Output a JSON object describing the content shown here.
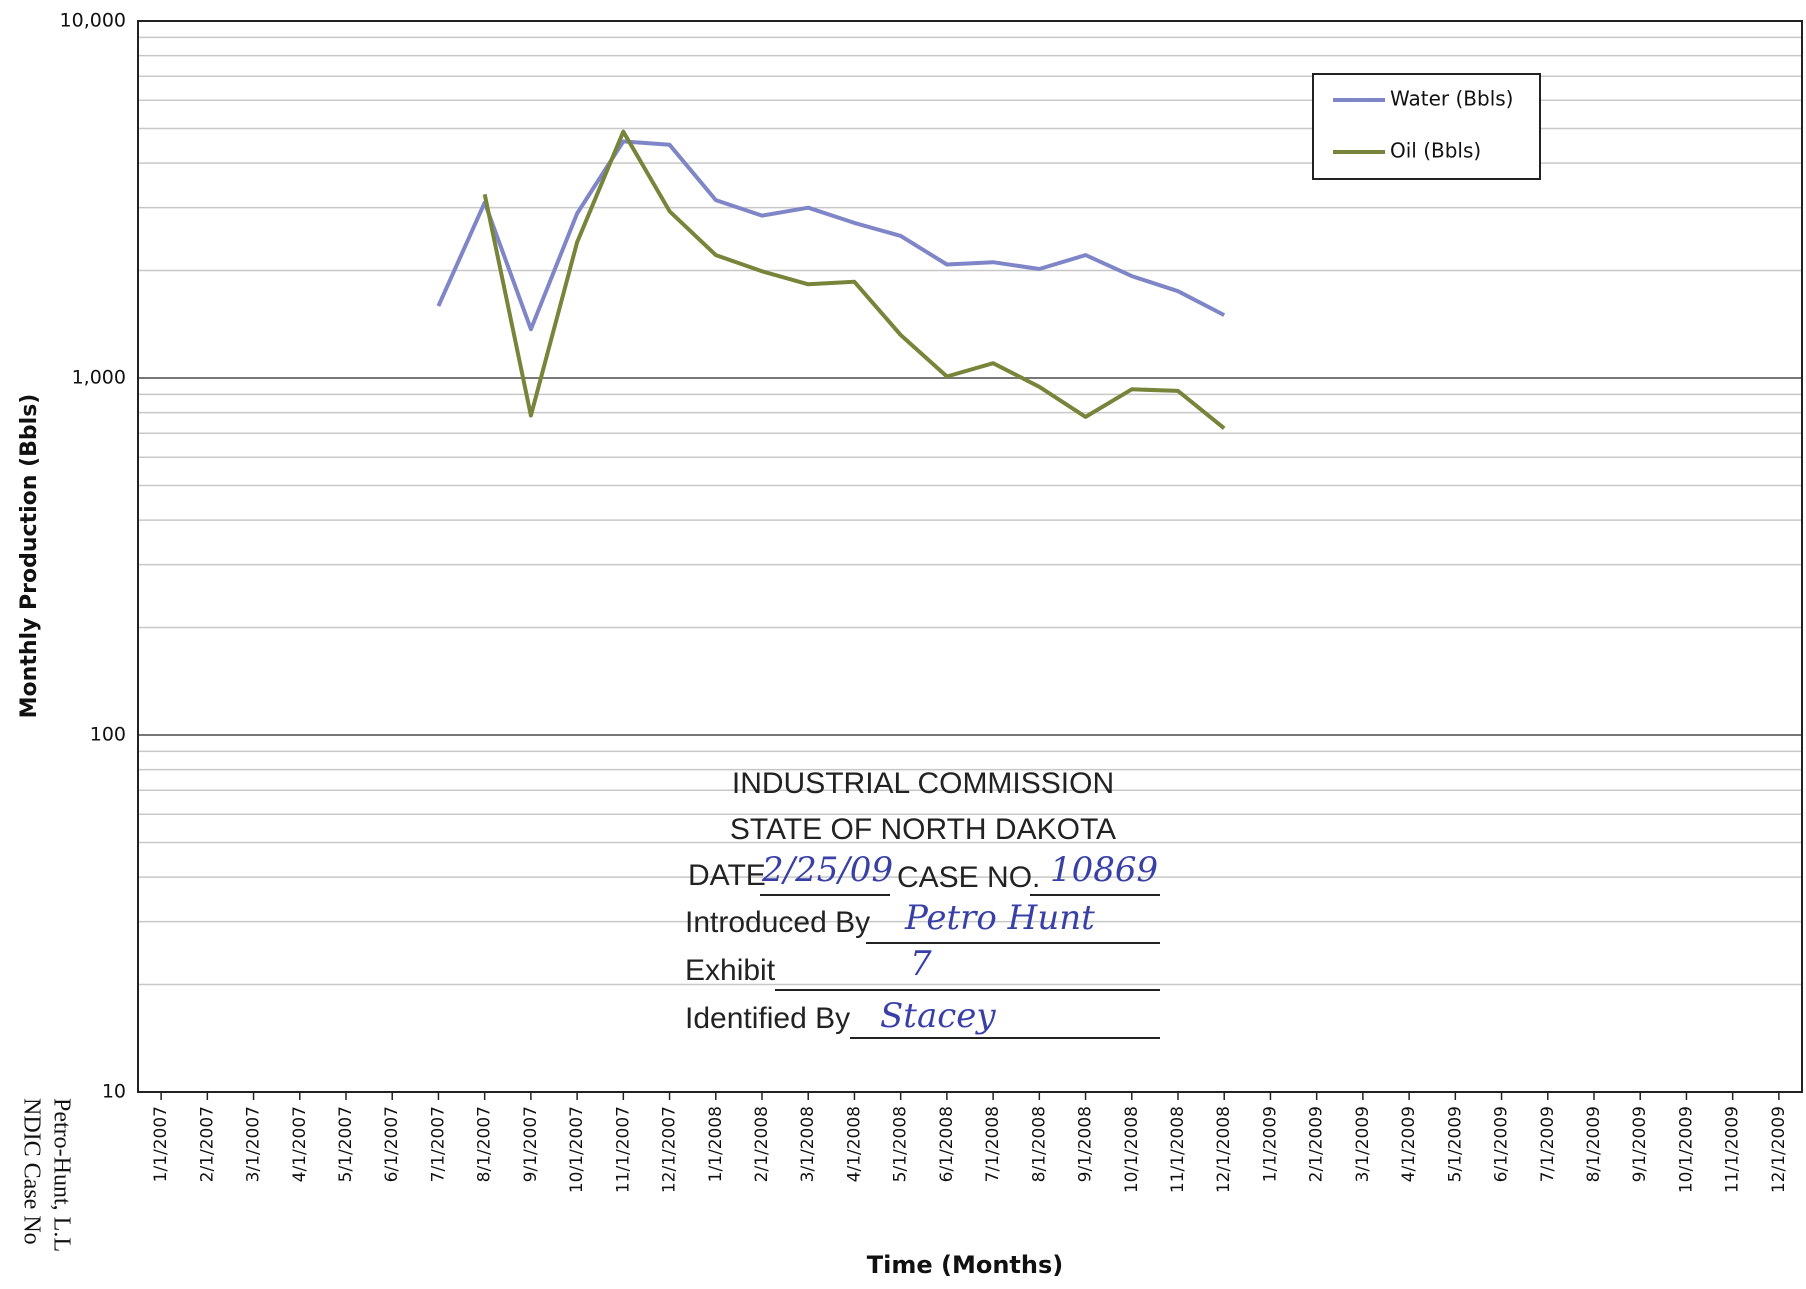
{
  "chart_data": {
    "type": "line",
    "ylabel": "Monthly Production (Bbls)",
    "xlabel": "Time (Months)",
    "categories": [
      "1/1/2007",
      "2/1/2007",
      "3/1/2007",
      "4/1/2007",
      "5/1/2007",
      "6/1/2007",
      "7/1/2007",
      "8/1/2007",
      "9/1/2007",
      "10/1/2007",
      "11/1/2007",
      "12/1/2007",
      "1/1/2008",
      "2/1/2008",
      "3/1/2008",
      "4/1/2008",
      "5/1/2008",
      "6/1/2008",
      "7/1/2008",
      "8/1/2008",
      "9/1/2008",
      "10/1/2008",
      "11/1/2008",
      "12/1/2008",
      "1/1/2009",
      "2/1/2009",
      "3/1/2009",
      "4/1/2009",
      "5/1/2009",
      "6/1/2009",
      "7/1/2009",
      "8/1/2009",
      "9/1/2009",
      "10/1/2009",
      "11/1/2009",
      "12/1/2009"
    ],
    "series": [
      {
        "name": "Water (Bbls)",
        "color": "#7f86c8",
        "values": [
          null,
          null,
          null,
          null,
          null,
          null,
          1590,
          3100,
          1370,
          2890,
          4600,
          4500,
          3150,
          2850,
          3000,
          2720,
          2500,
          2080,
          2110,
          2020,
          2210,
          1930,
          1750,
          1500,
          null,
          null,
          null,
          null,
          null,
          null,
          null,
          null,
          null,
          null,
          null,
          null
        ]
      },
      {
        "name": "Oil (Bbls)",
        "color": "#76853a",
        "values": [
          null,
          null,
          null,
          null,
          null,
          null,
          null,
          3270,
          785,
          2400,
          4900,
          2930,
          2210,
          1990,
          1830,
          1860,
          1320,
          1010,
          1100,
          945,
          778,
          930,
          920,
          723,
          null,
          null,
          null,
          null,
          null,
          null,
          null,
          null,
          null,
          null,
          null,
          null
        ]
      }
    ],
    "log_scale": true,
    "ylim": [
      10,
      10000
    ],
    "yticks": [
      10,
      100,
      {
        "value": 1000,
        "label": "1,000"
      },
      {
        "value": 10000,
        "label": "10,000"
      }
    ],
    "minor_yticks": [
      20,
      30,
      40,
      50,
      60,
      70,
      80,
      90,
      200,
      300,
      400,
      500,
      600,
      700,
      800,
      900,
      2000,
      3000,
      4000,
      5000,
      6000,
      7000,
      8000,
      9000
    ],
    "grid": true,
    "legend": "upper right"
  },
  "stamp": {
    "line1": "INDUSTRIAL COMMISSION",
    "line2": "STATE OF NORTH DAKOTA",
    "date_label": "DATE",
    "date": "2/25/09",
    "case_label": "CASE NO.",
    "case": "10869",
    "introduced_label": "Introduced By",
    "introduced": "Petro Hunt",
    "exhibit_label": "Exhibit",
    "exhibit": "7",
    "identified_label": "Identified By",
    "identified": "Stacey"
  },
  "margin_text": [
    "Petro-Hunt, L.L",
    "NDIC Case No"
  ]
}
